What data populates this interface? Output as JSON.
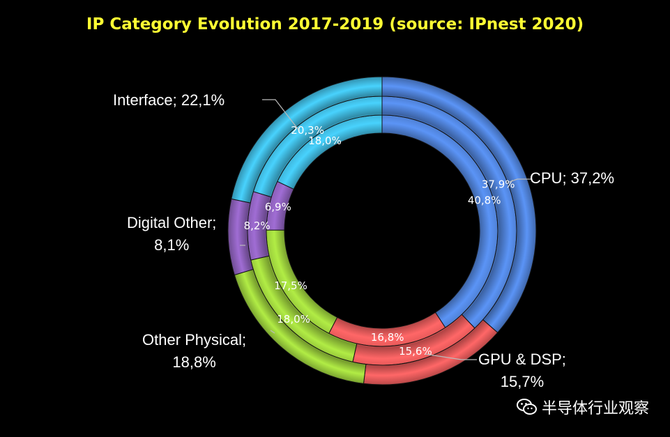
{
  "chart_data": {
    "type": "donut",
    "title": "IP Category Evolution 2017-2019 (source: IPnest  2020)",
    "categories": [
      "CPU",
      "GPU & DSP",
      "Other Physical",
      "Digital Other",
      "Interface"
    ],
    "colors": [
      "#4f81d6",
      "#e85a5a",
      "#9acd3c",
      "#8b5fb8",
      "#3fb7dc"
    ],
    "rings": [
      {
        "ring": "inner",
        "values": [
          40.8,
          16.8,
          17.5,
          6.9,
          18.0
        ]
      },
      {
        "ring": "middle",
        "values": [
          37.9,
          15.6,
          18.0,
          8.2,
          20.3
        ]
      },
      {
        "ring": "outer",
        "values": [
          37.2,
          15.7,
          18.8,
          8.1,
          22.1
        ]
      }
    ],
    "outer_labels": [
      {
        "category": "CPU",
        "text": "CPU; 37,2%"
      },
      {
        "category": "GPU & DSP",
        "line1": "GPU & DSP;",
        "line2": "15,7%"
      },
      {
        "category": "Other Physical",
        "line1": "Other Physical;",
        "line2": "18,8%"
      },
      {
        "category": "Digital Other",
        "line1": "Digital Other;",
        "line2": "8,1%"
      },
      {
        "category": "Interface",
        "text": "Interface; 22,1%"
      }
    ],
    "inner_labels": [
      [
        "40,8%",
        "16,8%",
        "17,5%",
        "6,9%",
        "18,0%"
      ],
      [
        "37,9%",
        "15,6%",
        "18,0%",
        "8,2%",
        "20,3%"
      ]
    ]
  },
  "watermark": {
    "icon": "wechat-icon",
    "text": "半导体行业观察"
  }
}
